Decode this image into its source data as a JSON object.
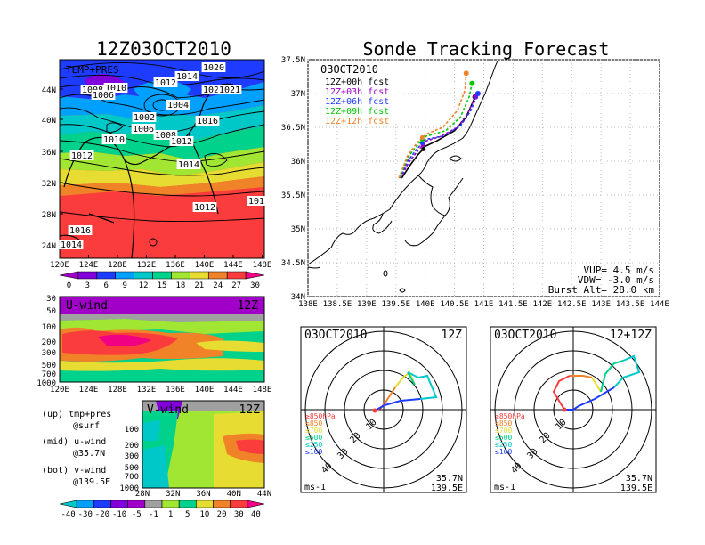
{
  "main_title": "12Z03OCT2010",
  "right_title": "Sonde Tracking Forecast",
  "colors": {
    "temp_bands": [
      "#a000c8",
      "#8200dc",
      "#1e3cff",
      "#00a0ff",
      "#00c8c8",
      "#00d28c",
      "#a0e632",
      "#e6dc32",
      "#f08228",
      "#fa3c3c",
      "#f00082"
    ],
    "wind_bands": [
      "#00c8c8",
      "#00a0ff",
      "#1e3cff",
      "#8200dc",
      "#a000c8",
      "#a0a0a0",
      "#a0e632",
      "#00d28c",
      "#e6dc32",
      "#f08228",
      "#fa3c3c",
      "#f00082"
    ],
    "fcst": [
      "#000000",
      "#a000c8",
      "#1e3cff",
      "#00c800",
      "#f08228"
    ],
    "hodo_layers": [
      "#fa3c3c",
      "#f08228",
      "#e6dc32",
      "#00d28c",
      "#00c8c8",
      "#1e3cff"
    ]
  },
  "panel_top": {
    "label": "TEMP+PRES",
    "lat_ticks": [
      "44N",
      "40N",
      "36N",
      "32N",
      "28N",
      "24N"
    ],
    "lon_ticks": [
      "120E",
      "124E",
      "128E",
      "132E",
      "136E",
      "140E",
      "144E",
      "148E"
    ],
    "isobar_labels": [
      "1020",
      "1008",
      "1010",
      "1006",
      "1012",
      "1014",
      "1004",
      "1002",
      "1024",
      "1021",
      "1016",
      "1008",
      "1006",
      "1012",
      "1010",
      "1012",
      "1014",
      "1012",
      "101",
      "1016",
      "1014"
    ],
    "colorbar_labels": [
      "0",
      "3",
      "6",
      "9",
      "12",
      "15",
      "18",
      "21",
      "24",
      "27",
      "30"
    ]
  },
  "panel_mid": {
    "label": "U-wind",
    "time": "12Z",
    "p_ticks": [
      "30",
      "50",
      "100",
      "200",
      "300",
      "500",
      "700",
      "1000"
    ],
    "lon_ticks": [
      "120E",
      "124E",
      "128E",
      "132E",
      "136E",
      "140E",
      "144E",
      "148E"
    ]
  },
  "panel_bot": {
    "label": "V-wind",
    "time": "12Z",
    "p_ticks": [
      "100",
      "200",
      "300",
      "500",
      "700",
      "1000"
    ],
    "lat_ticks": [
      "28N",
      "32N",
      "36N",
      "40N",
      "44N"
    ],
    "colorbar_labels": [
      "-40",
      "-30",
      "-20",
      "-10",
      "-5",
      "-1",
      "1",
      "5",
      "10",
      "20",
      "30",
      "40"
    ]
  },
  "legend_notes": [
    {
      "line1": "(up) tmp+pres",
      "line2": "@surf"
    },
    {
      "line1": "(mid) u-wind",
      "line2": "@35.7N"
    },
    {
      "line1": "(bot) v-wind",
      "line2": "@139.5E"
    }
  ],
  "track_map": {
    "date": "03OCT2010",
    "forecasts": [
      "12Z+00h fcst",
      "12Z+03h fcst",
      "12Z+06h fcst",
      "12Z+09h fcst",
      "12Z+12h fcst"
    ],
    "lat_ticks": [
      "37.5N",
      "37N",
      "36.5N",
      "36N",
      "35.5N",
      "35N",
      "34.5N",
      "34N"
    ],
    "lon_ticks": [
      "138E",
      "138.5E",
      "139E",
      "139.5E",
      "140E",
      "140.5E",
      "141E",
      "141.5E",
      "142E",
      "142.5E",
      "143E",
      "143.5E",
      "144E"
    ],
    "params": [
      "VUP= 4.5 m/s",
      "VDW= -3.0 m/s",
      "Burst Alt= 28.0 km"
    ]
  },
  "hodo_left": {
    "date": "03OCT2010",
    "time": "12Z",
    "ring_labels": [
      "10",
      "20",
      "30",
      "40"
    ],
    "layers": [
      "≥850hPa",
      "≤850",
      "≤700",
      "≤500",
      "≤250",
      "≤100"
    ],
    "loc_lat": "35.7N",
    "loc_lon": "139.5E",
    "units": "ms-1"
  },
  "hodo_right": {
    "date": "03OCT2010",
    "time": "12+12Z",
    "ring_labels": [
      "10",
      "20",
      "30",
      "40"
    ],
    "layers": [
      "≥850hPa",
      "≤850",
      "≤700",
      "≤500",
      "≤250",
      "≤100"
    ],
    "loc_lat": "35.7N",
    "loc_lon": "139.5E",
    "units": "ms-1"
  },
  "chart_data": [
    {
      "type": "line",
      "title": "Sonde Tracking Forecast",
      "xlabel": "",
      "ylabel": "",
      "xlim": [
        138,
        144
      ],
      "ylim": [
        34,
        37.5
      ],
      "series": [
        {
          "name": "12Z+00h fcst",
          "x": [
            139.6,
            139.75,
            139.88,
            139.97,
            140.0,
            140.2,
            140.5,
            140.7,
            140.8,
            140.85
          ],
          "y": [
            35.75,
            35.95,
            36.1,
            36.18,
            36.22,
            36.3,
            36.45,
            36.65,
            36.85,
            36.95
          ]
        },
        {
          "name": "12Z+03h fcst",
          "x": [
            139.58,
            139.72,
            139.86,
            139.96,
            140.02,
            140.25,
            140.55,
            140.72,
            140.82,
            140.86
          ],
          "y": [
            35.75,
            35.98,
            36.14,
            36.24,
            36.3,
            36.36,
            36.5,
            36.7,
            36.88,
            36.95
          ]
        },
        {
          "name": "12Z+06h fcst",
          "x": [
            139.57,
            139.7,
            139.85,
            139.95,
            140.0,
            140.3,
            140.6,
            140.78,
            140.86,
            140.9
          ],
          "y": [
            35.75,
            36.0,
            36.17,
            36.27,
            36.32,
            36.37,
            36.52,
            36.75,
            36.92,
            37.0
          ]
        },
        {
          "name": "12Z+09h fcst",
          "x": [
            139.56,
            139.7,
            139.85,
            139.95,
            140.02,
            140.35,
            140.6,
            140.75,
            140.8
          ],
          "y": [
            35.75,
            36.05,
            36.22,
            36.32,
            36.37,
            36.45,
            36.65,
            36.95,
            37.15
          ]
        },
        {
          "name": "12Z+12h fcst",
          "x": [
            139.55,
            139.7,
            139.85,
            139.95,
            140.02,
            140.3,
            140.55,
            140.68,
            140.7
          ],
          "y": [
            35.75,
            36.08,
            36.26,
            36.35,
            36.4,
            36.5,
            36.75,
            37.05,
            37.3
          ]
        }
      ]
    }
  ]
}
